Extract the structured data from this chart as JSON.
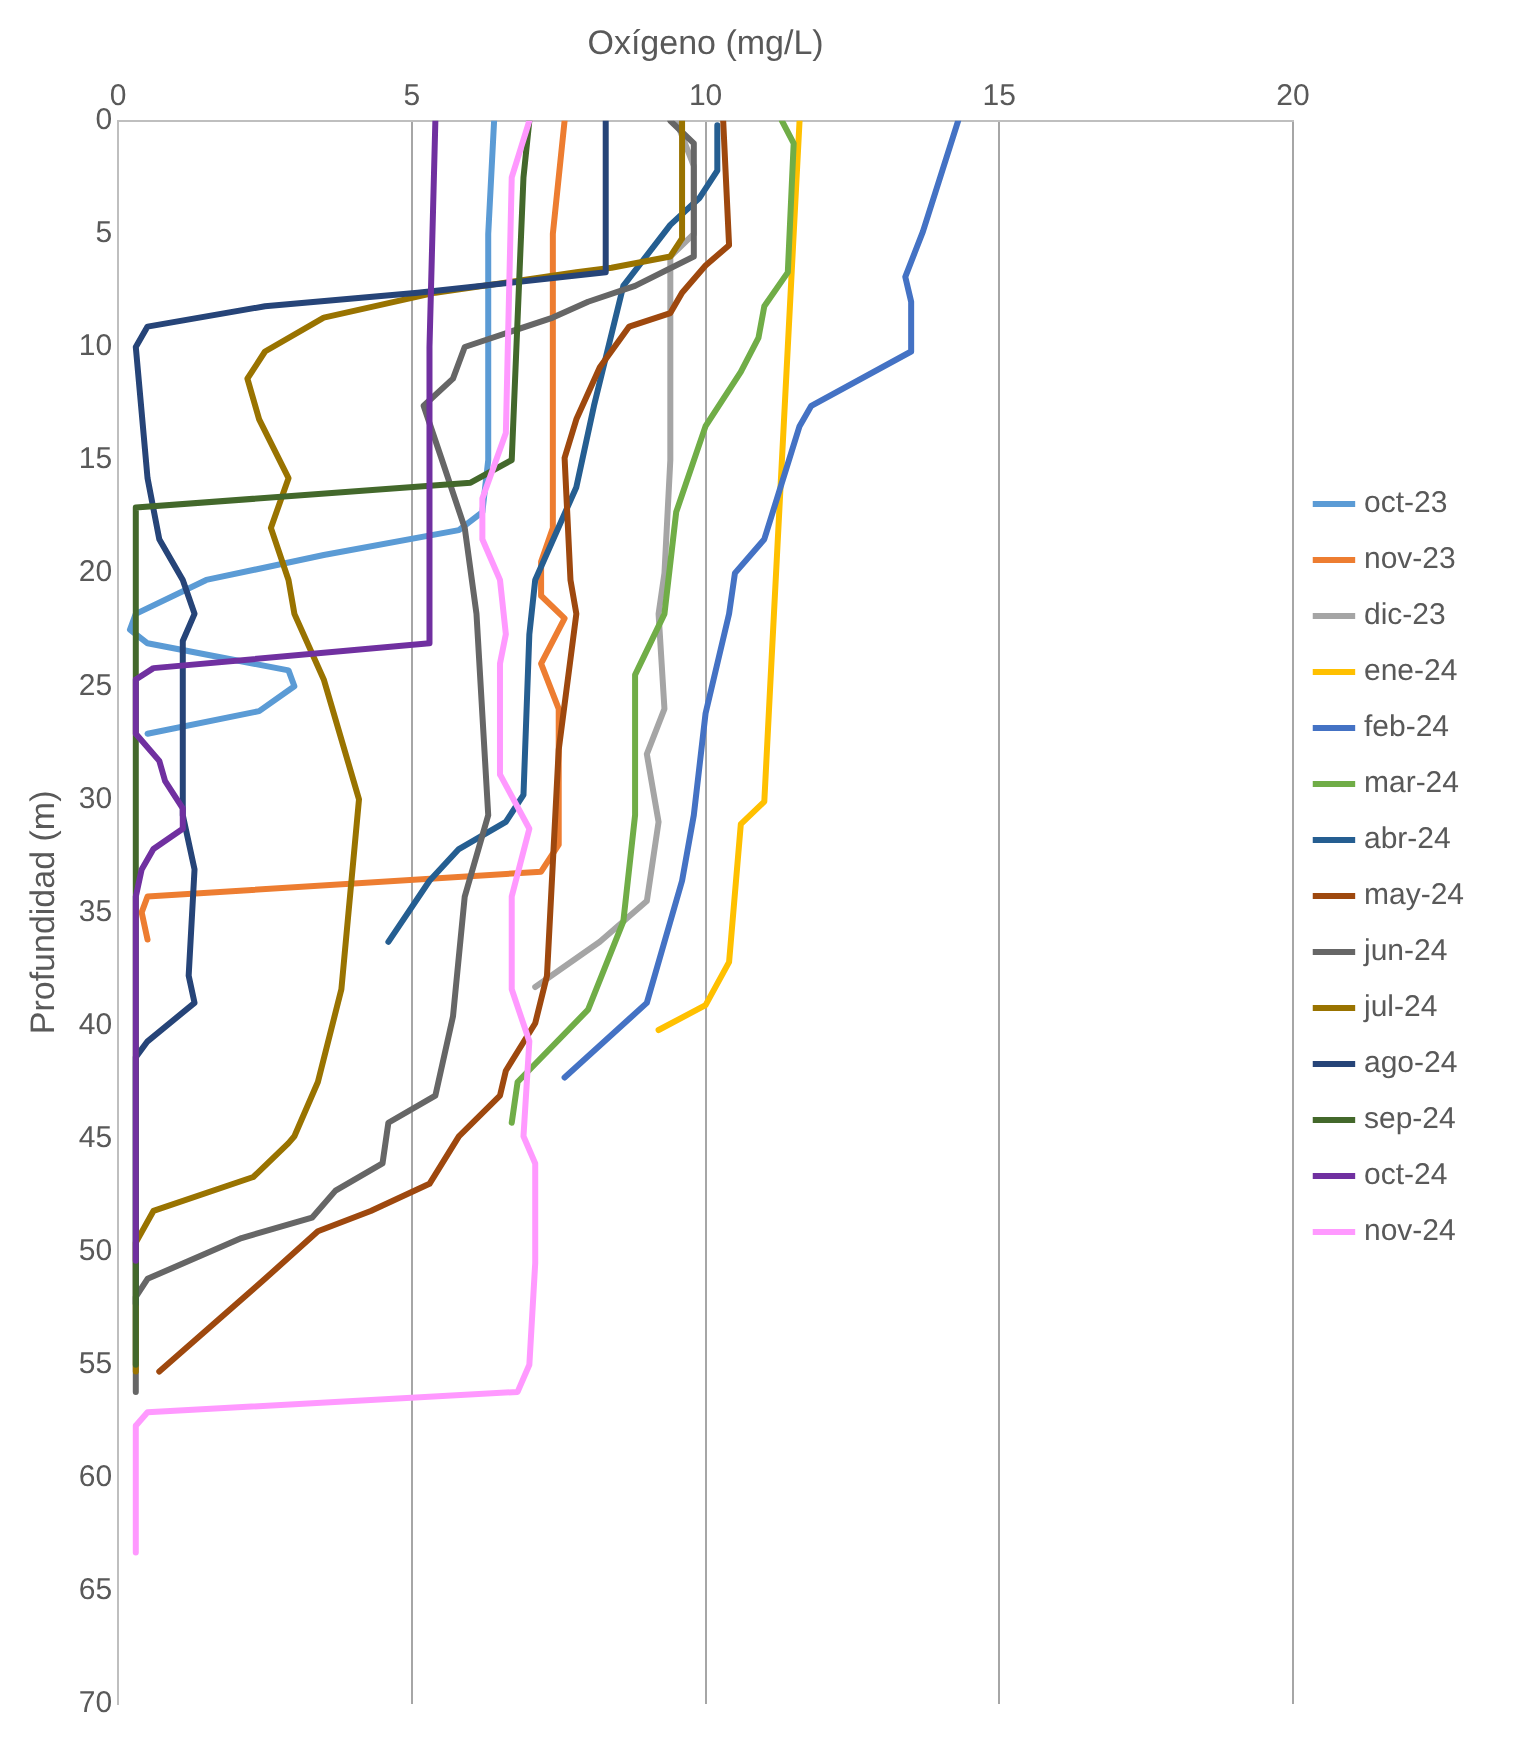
{
  "chart_data": {
    "type": "line",
    "xlabel": "Oxígeno (mg/L)",
    "ylabel": "Profundidad (m)",
    "xlim": [
      0,
      20
    ],
    "xticks": [
      0,
      5,
      10,
      15,
      20
    ],
    "ylim": [
      70,
      0
    ],
    "yticks": [
      0,
      5,
      10,
      15,
      20,
      25,
      30,
      35,
      40,
      45,
      50,
      55,
      60,
      65,
      70
    ],
    "grid": "x",
    "legend": "right",
    "line_style": "solid",
    "series": [
      {
        "name": "oct-23",
        "color": "#5b9bd5",
        "x": [
          6.4,
          6.3,
          6.3,
          6.2,
          5.8,
          3.5,
          1.5,
          0.3,
          0.2,
          0.5,
          2.9,
          3.0,
          2.4,
          0.5
        ],
        "values": [
          0,
          5,
          15,
          17.3,
          18.1,
          19.2,
          20.3,
          21.8,
          22.5,
          23.1,
          24.3,
          25,
          26.1,
          27.1
        ]
      },
      {
        "name": "nov-23",
        "color": "#ed7d31",
        "x": [
          7.6,
          7.4,
          7.4,
          7.2,
          7.2,
          7.6,
          7.2,
          7.5,
          7.5,
          7.2,
          0.5,
          0.4,
          0.5
        ],
        "values": [
          0,
          5,
          18,
          19.5,
          21,
          22,
          24,
          26,
          32,
          33.2,
          34.3,
          35,
          36.2
        ]
      },
      {
        "name": "dic-23",
        "color": "#a5a5a5",
        "x": [
          9.5,
          9.8,
          9.8,
          9.4,
          9.4,
          9.3,
          9.2,
          9.3,
          9.0,
          9.2,
          9.0,
          8.2,
          7.1
        ],
        "values": [
          0,
          2,
          5,
          6,
          15,
          20,
          21.8,
          26,
          28,
          31,
          34.5,
          36.3,
          38.3
        ]
      },
      {
        "name": "ene-24",
        "color": "#ffc000",
        "x": [
          11.6,
          11.5,
          11.4,
          11.2,
          11.1,
          11.0,
          10.6,
          10.4,
          10.0,
          9.2
        ],
        "values": [
          0,
          5,
          10,
          20,
          25,
          30.1,
          31.1,
          37.2,
          39.1,
          40.2
        ]
      },
      {
        "name": "feb-24",
        "color": "#4472c4",
        "x": [
          14.3,
          13.7,
          13.4,
          13.5,
          13.5,
          11.8,
          11.6,
          11.0,
          10.5,
          10.4,
          10.0,
          9.8,
          9.6,
          9.0,
          7.6
        ],
        "values": [
          0,
          4.9,
          6.9,
          8,
          10.2,
          12.6,
          13.5,
          18.5,
          20,
          21.8,
          26.2,
          30.7,
          33.6,
          39,
          42.3
        ]
      },
      {
        "name": "mar-24",
        "color": "#70ad47",
        "x": [
          11.3,
          11.5,
          11.4,
          11.0,
          10.9,
          10.6,
          10.0,
          9.5,
          9.3,
          8.8,
          8.8,
          8.6,
          8.0,
          6.8,
          6.7
        ],
        "values": [
          0,
          1,
          6.7,
          8.2,
          9.6,
          11.1,
          13.5,
          17.3,
          21.8,
          24.5,
          30.7,
          35.4,
          39.3,
          42.5,
          44.3
        ]
      },
      {
        "name": "abr-24",
        "color": "#255e91",
        "x": [
          10.2,
          10.2,
          9.9,
          9.4,
          8.6,
          8.1,
          7.8,
          7.1,
          7.0,
          6.9,
          6.6,
          5.8,
          5.3,
          4.6
        ],
        "values": [
          0.2,
          2.2,
          3.4,
          4.6,
          7.3,
          12.6,
          16.2,
          20.3,
          22.7,
          29.8,
          31,
          32.2,
          33.6,
          36.3
        ]
      },
      {
        "name": "may-24",
        "color": "#9e480e",
        "x": [
          10.3,
          10.4,
          10.0,
          9.6,
          9.4,
          8.7,
          8.2,
          7.8,
          7.6,
          7.7,
          7.8,
          7.5,
          7.3,
          7.1,
          6.6,
          6.5,
          5.8,
          5.3,
          4.3,
          3.4,
          2.5,
          0.7
        ],
        "values": [
          0,
          5.5,
          6.4,
          7.6,
          8.5,
          9.1,
          10.9,
          13.2,
          14.9,
          20.3,
          21.8,
          27.8,
          37.8,
          39.9,
          42,
          43.1,
          44.9,
          47,
          48.2,
          49.1,
          51.2,
          55.3
        ]
      },
      {
        "name": "jun-24",
        "color": "#666666",
        "x": [
          9.4,
          9.8,
          9.8,
          8.8,
          8.0,
          7.4,
          5.9,
          5.7,
          5.2,
          5.5,
          5.9,
          6.1,
          6.3,
          5.9,
          5.7,
          5.4,
          4.6,
          4.5,
          3.7,
          3.3,
          2.1,
          0.5,
          0.3,
          0.3
        ],
        "values": [
          0,
          1,
          6,
          7.3,
          8,
          8.7,
          10,
          11.4,
          12.6,
          14.9,
          18,
          21.8,
          30.7,
          34.3,
          39.6,
          43.1,
          44.3,
          46.1,
          47.3,
          48.5,
          49.4,
          51.2,
          52,
          56.2
        ]
      },
      {
        "name": "jul-24",
        "color": "#997300",
        "x": [
          9.6,
          9.6,
          9.4,
          8.4,
          7.8,
          5.4,
          3.5,
          2.5,
          2.2,
          2.4,
          2.9,
          2.6,
          2.9,
          3.0,
          3.5,
          4.1,
          3.8,
          3.4,
          3.0,
          2.9,
          2.3,
          0.6,
          0.3,
          0.3
        ],
        "values": [
          0,
          5.2,
          6,
          6.5,
          6.7,
          7.6,
          8.7,
          10.2,
          11.4,
          13.2,
          15.8,
          18,
          20.3,
          21.8,
          24.7,
          30,
          38.4,
          42.5,
          44.9,
          45.2,
          46.7,
          48.2,
          49.6,
          55.3
        ]
      },
      {
        "name": "ago-24",
        "color": "#264478",
        "x": [
          8.3,
          8.3,
          5.1,
          2.5,
          0.5,
          0.3,
          0.4,
          0.5,
          0.7,
          1.1,
          1.3,
          1.1,
          1.1,
          1.3,
          1.2,
          1.3,
          0.5,
          0.3,
          0.3
        ],
        "values": [
          0,
          6.7,
          7.6,
          8.2,
          9.1,
          10,
          12.9,
          15.8,
          18.5,
          20.3,
          21.8,
          23,
          30.7,
          33.1,
          37.8,
          39,
          40.7,
          41.4,
          52.3
        ]
      },
      {
        "name": "sep-24",
        "color": "#43682b",
        "x": [
          7.0,
          6.9,
          6.7,
          6.0,
          0.3,
          0.3
        ],
        "values": [
          0,
          2.5,
          15,
          16,
          17.1,
          55
        ]
      },
      {
        "name": "oct-24",
        "color": "#7030a0",
        "x": [
          5.4,
          5.3,
          5.3,
          0.6,
          0.3,
          0.3,
          0.7,
          0.8,
          1.1,
          1.1,
          0.6,
          0.4,
          0.3,
          0.3
        ],
        "values": [
          0,
          10,
          23.1,
          24.2,
          24.7,
          27.1,
          28.3,
          29.2,
          30.4,
          31.3,
          32.2,
          33.1,
          34.3,
          50.4
        ]
      },
      {
        "name": "nov-24",
        "color": "#ff99ff",
        "x": [
          7.0,
          6.7,
          6.6,
          6.2,
          6.2,
          6.5,
          6.6,
          6.5,
          6.5,
          7.0,
          6.7,
          6.7,
          7.0,
          6.9,
          7.1,
          7.1,
          7.0,
          6.8,
          0.5,
          0.3,
          0.3
        ],
        "values": [
          0,
          2.5,
          13.8,
          16.7,
          18.5,
          20.3,
          22.7,
          24,
          28.9,
          31.3,
          34.3,
          38.4,
          40.7,
          44.9,
          46.1,
          50.5,
          55,
          56.2,
          57.1,
          57.7,
          63.3
        ]
      }
    ]
  }
}
